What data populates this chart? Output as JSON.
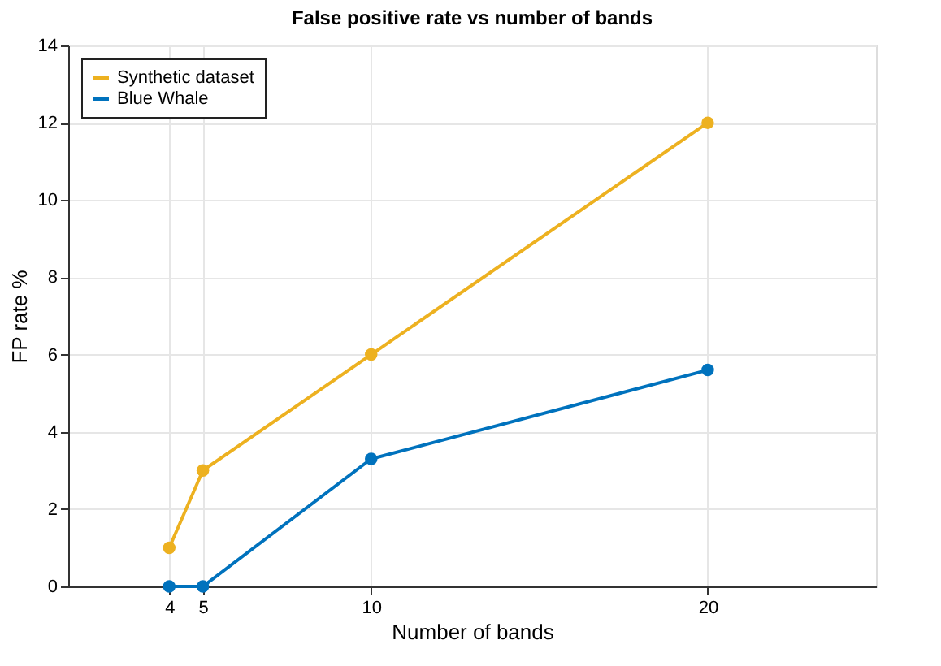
{
  "chart_data": {
    "type": "line",
    "title": "False positive rate vs number of bands",
    "xlabel": "Number of bands",
    "ylabel": "FP rate %",
    "x": [
      4,
      5,
      10,
      20
    ],
    "series": [
      {
        "name": "Synthetic dataset",
        "color": "#edb120",
        "values": [
          1,
          3,
          6,
          12
        ]
      },
      {
        "name": "Blue Whale",
        "color": "#0072bd",
        "values": [
          0,
          0,
          3.3,
          5.6
        ]
      }
    ],
    "xlim": [
      1,
      25
    ],
    "xticks": [
      4,
      5,
      10,
      20
    ],
    "ylim": [
      0,
      14
    ],
    "yticks": [
      0,
      2,
      4,
      6,
      8,
      10,
      12,
      14
    ],
    "grid": true,
    "legend": "top left",
    "marker": "circle",
    "line_style": "solid"
  }
}
